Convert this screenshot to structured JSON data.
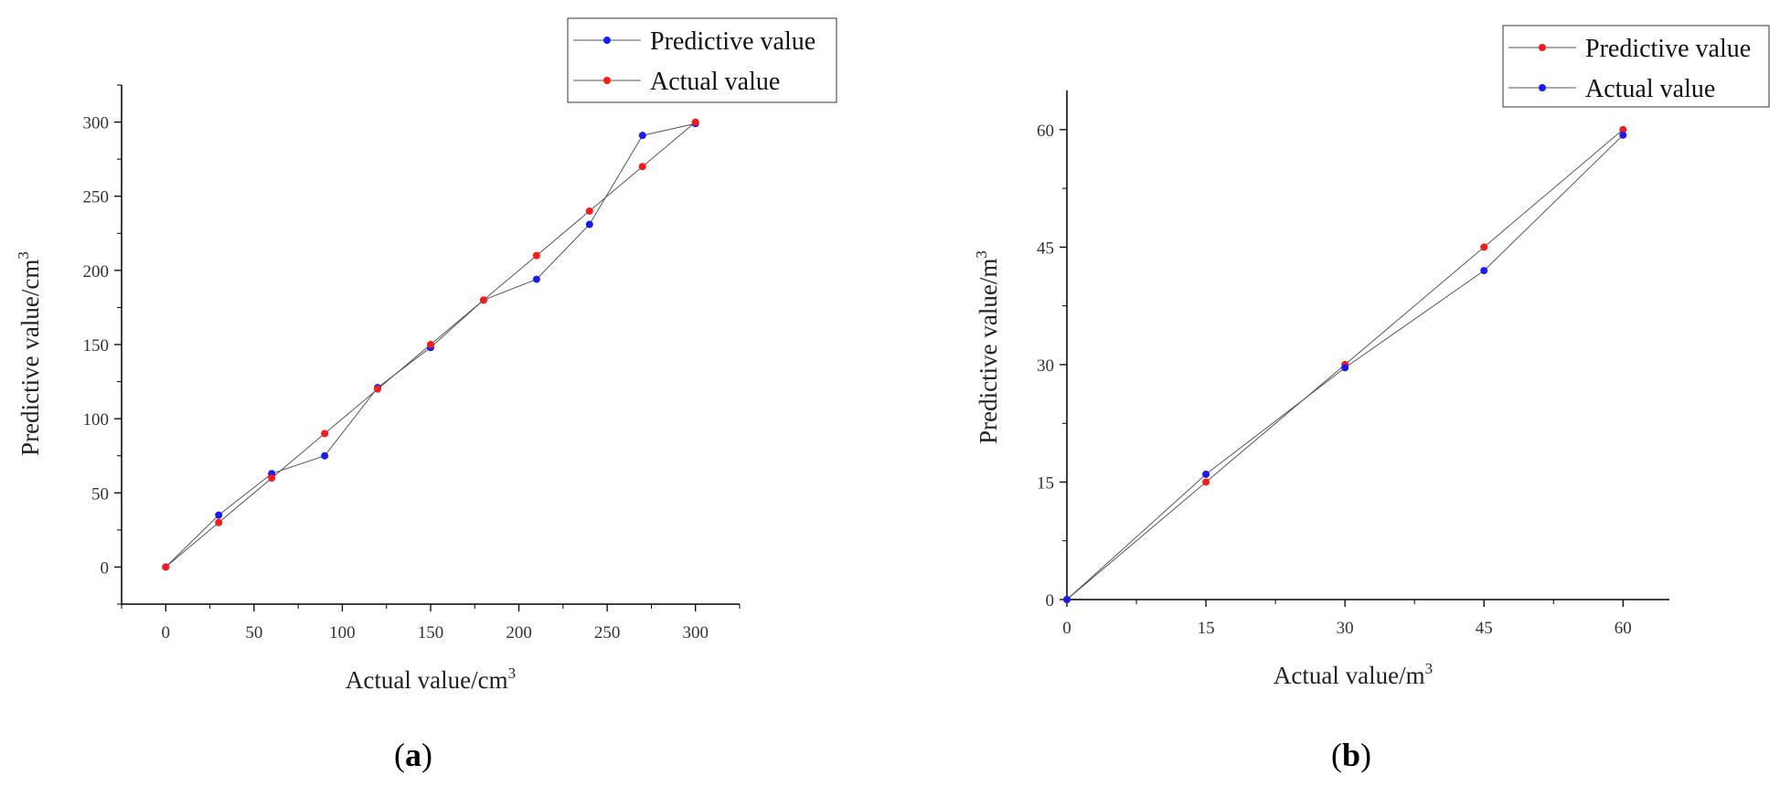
{
  "chart_data": [
    {
      "type": "line",
      "panel": "a",
      "caption_open": "(",
      "caption_letter": "a",
      "caption_close": ")",
      "xlabel_main": "Actual value/cm",
      "xlabel_sup": "3",
      "ylabel_main": "Predictive value/cm",
      "ylabel_sup": "3",
      "xlim": [
        -25,
        325
      ],
      "ylim": [
        -25,
        325
      ],
      "xticks": [
        0,
        50,
        100,
        150,
        200,
        250,
        300
      ],
      "yticks": [
        0,
        50,
        100,
        150,
        200,
        250,
        300
      ],
      "legend_position": "top-right",
      "series": [
        {
          "name": "Predictive value",
          "color": "#1a1aff",
          "x": [
            0,
            30,
            60,
            90,
            120,
            150,
            180,
            210,
            240,
            270,
            300
          ],
          "y": [
            0,
            35,
            63,
            75,
            121,
            148,
            180,
            194,
            231,
            291,
            299
          ]
        },
        {
          "name": "Actual value",
          "color": "#ff1a1a",
          "x": [
            0,
            30,
            60,
            90,
            120,
            150,
            180,
            210,
            240,
            270,
            300
          ],
          "y": [
            0,
            30,
            60,
            90,
            120,
            150,
            180,
            210,
            240,
            270,
            300
          ]
        }
      ]
    },
    {
      "type": "line",
      "panel": "b",
      "caption_open": "(",
      "caption_letter": "b",
      "caption_close": ")",
      "xlabel_main": "Actual value/m",
      "xlabel_sup": "3",
      "ylabel_main": "Predictive value/m",
      "ylabel_sup": "3",
      "xlim": [
        0,
        65
      ],
      "ylim": [
        0,
        65
      ],
      "xticks": [
        0,
        15,
        30,
        45,
        60
      ],
      "yticks": [
        0,
        15,
        30,
        45,
        60
      ],
      "legend_position": "top-right",
      "series": [
        {
          "name": "Predictive value",
          "color": "#ff1a1a",
          "x": [
            0,
            15,
            30,
            45,
            60
          ],
          "y": [
            0,
            15,
            30,
            45,
            60
          ]
        },
        {
          "name": "Actual value",
          "color": "#1a1aff",
          "x": [
            0,
            15,
            30,
            45,
            60
          ],
          "y": [
            0,
            16,
            29.6,
            42,
            59.3
          ]
        }
      ]
    }
  ]
}
